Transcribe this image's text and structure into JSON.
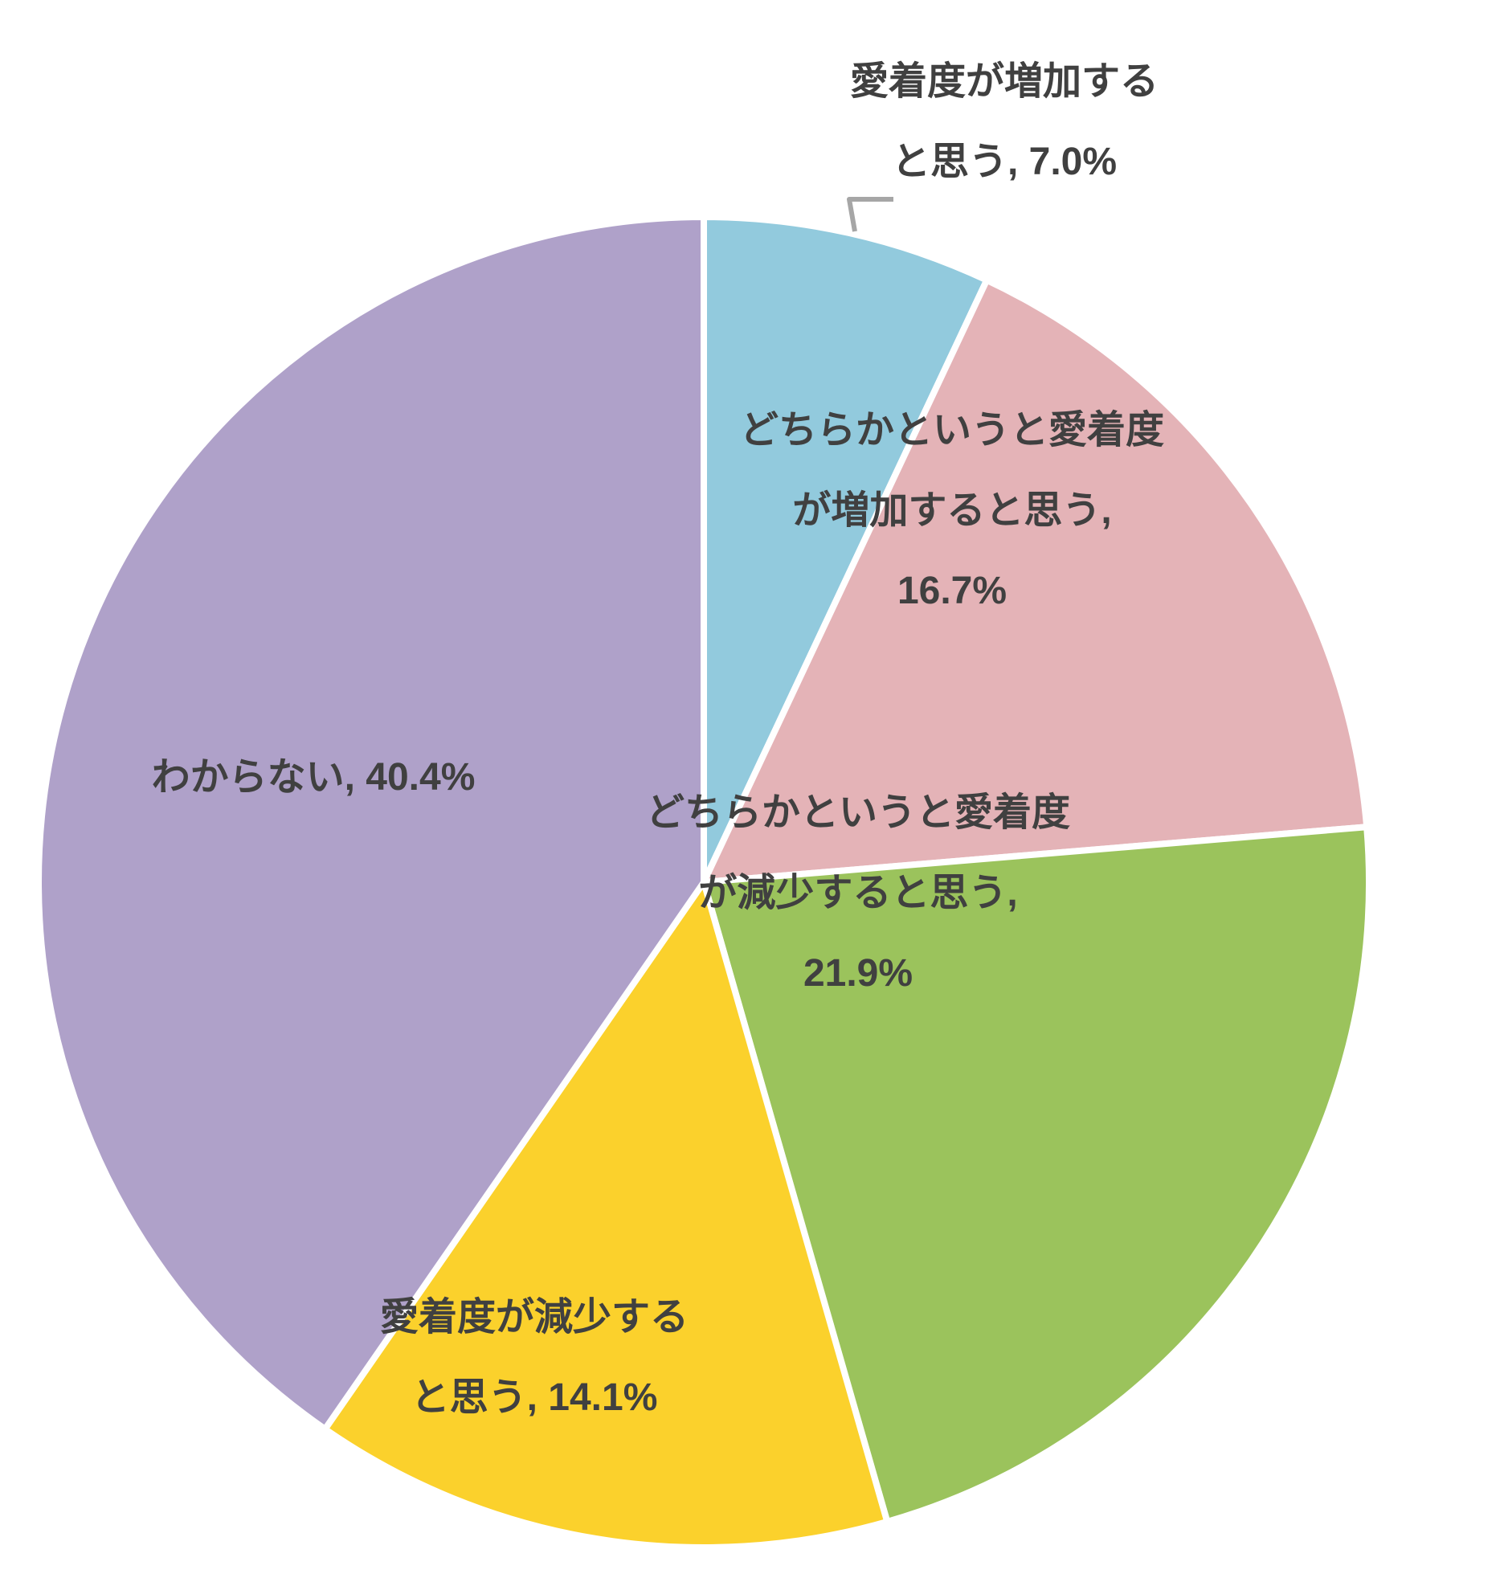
{
  "chart_data": {
    "type": "pie",
    "title": "",
    "legend_position": "none",
    "data_label_style": "category name + percentage, inside/outside slices",
    "background_color": "#FFFFFF",
    "text_color": "#404040",
    "slice_gap_color": "#FFFFFF",
    "leader_line_color": "#A6A6A6",
    "start_angle_deg": 0,
    "direction": "clockwise",
    "unit": "%",
    "slices": [
      {
        "label": "愛着度が増加すると思う",
        "value": 7.0,
        "display": "愛着度が増加すると思う, 7.0%",
        "label_lines": [
          "愛着度が増加する",
          "と思う, 7.0%"
        ],
        "color": "#92CADD"
      },
      {
        "label": "どちらかというと愛着度が増加すると思う",
        "value": 16.7,
        "display": "どちらかというと愛着度が増加すると思う, 16.7%",
        "label_lines": [
          "どちらかというと愛着度",
          "が増加すると思う,",
          "16.7%"
        ],
        "color": "#E4B3B7"
      },
      {
        "label": "どちらかというと愛着度が減少すると思う",
        "value": 21.9,
        "display": "どちらかというと愛着度が減少すると思う, 21.9%",
        "label_lines": [
          "どちらかというと愛着度",
          "が減少すると思う,",
          "21.9%"
        ],
        "color": "#9BC35C"
      },
      {
        "label": "愛着度が減少すると思う",
        "value": 14.1,
        "display": "愛着度が減少すると思う, 14.1%",
        "label_lines": [
          "愛着度が減少する",
          "と思う, 14.1%"
        ],
        "color": "#FBD12C"
      },
      {
        "label": "わからない",
        "value": 40.4,
        "display": "わからない, 40.4%",
        "label_lines": [
          "わからない, 40.4%"
        ],
        "color": "#AFA1C9"
      }
    ]
  }
}
